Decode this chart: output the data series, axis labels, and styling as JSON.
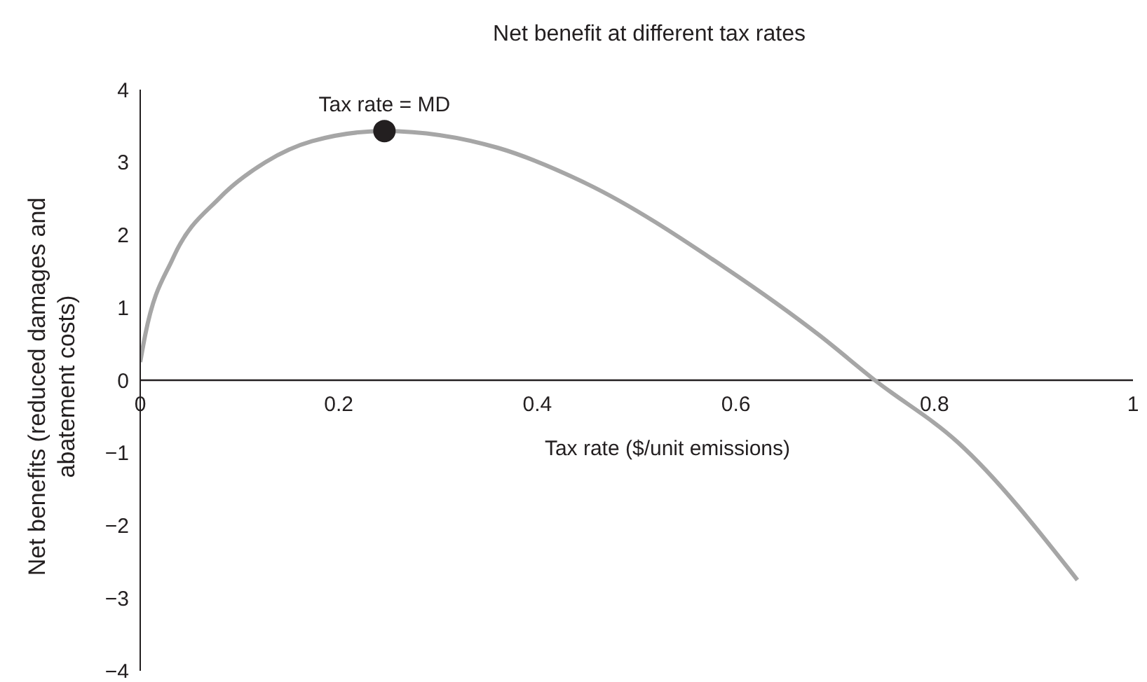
{
  "chart_data": {
    "type": "line",
    "title": "Net benefit at different tax rates",
    "xlabel": "Tax rate ($/unit emissions)",
    "ylabel": "Net benefits (reduced damages and abatement costs)",
    "x": [
      0,
      0.005,
      0.033,
      0.08,
      0.126,
      0.173,
      0.246,
      0.36,
      0.449,
      0.59,
      0.684,
      0.74,
      0.824,
      0.944
    ],
    "series": [
      {
        "color": "#a6a6a6",
        "values": [
          0.25,
          0.62,
          1.68,
          2.51,
          3.0,
          3.29,
          3.43,
          3.2,
          2.71,
          1.54,
          0.62,
          0,
          -0.86,
          -2.75
        ]
      },
      {
        "type": "scatter",
        "marker": "circle",
        "color": "#231f20",
        "x": [
          0.246
        ],
        "values": [
          3.43
        ]
      }
    ],
    "annotations": [
      {
        "text": "Tax rate = MD",
        "x": 0.246,
        "y": 3.43
      }
    ],
    "xlim": [
      0,
      1
    ],
    "xticks": [
      0,
      0.2,
      0.4,
      0.6,
      0.8,
      1
    ],
    "ylim": [
      -4,
      4
    ],
    "yticks": [
      {
        "value": -4,
        "label": "−4"
      },
      {
        "value": -3,
        "label": "−3"
      },
      {
        "value": -2,
        "label": "−2"
      },
      {
        "value": -1,
        "label": "−1"
      },
      0,
      1,
      2,
      3,
      4
    ],
    "grid": false,
    "legend": false,
    "marker": "none",
    "line_style": "solid"
  }
}
